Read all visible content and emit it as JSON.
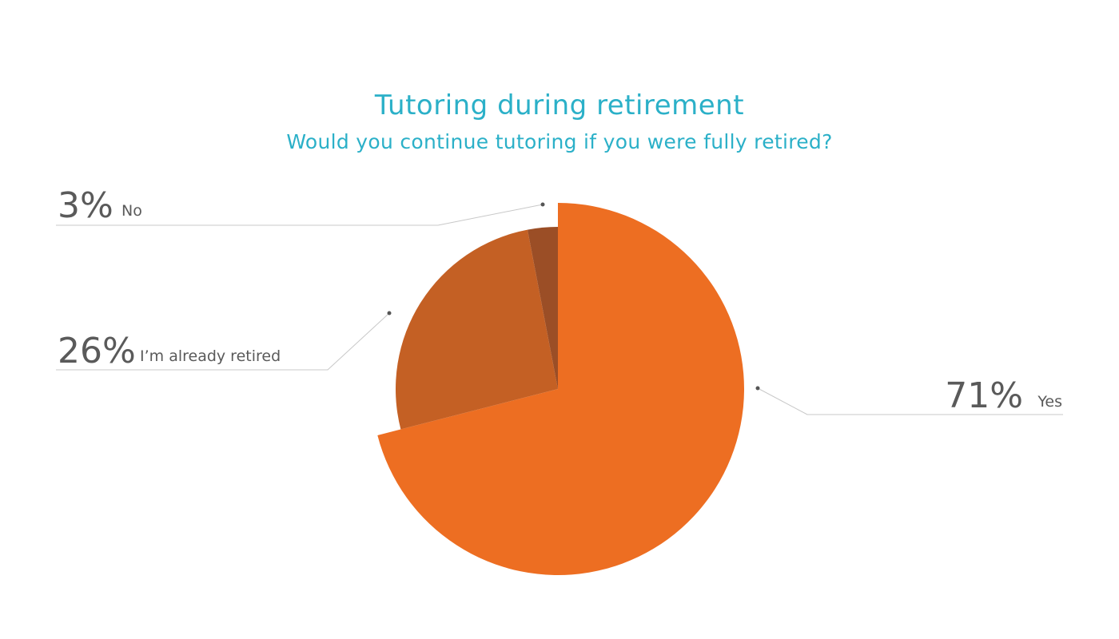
{
  "chart_data": {
    "type": "pie",
    "title": "Tutoring during retirement",
    "subtitle": "Would you continue tutoring if you were fully retired?",
    "slices": [
      {
        "label": "Yes",
        "value": 71,
        "value_label": "71%",
        "color": "#ed6e22",
        "exploded": true
      },
      {
        "label": "I’m already retired",
        "value": 26,
        "value_label": "26%",
        "color": "#c46024",
        "exploded": false
      },
      {
        "label": "No",
        "value": 3,
        "value_label": "3%",
        "color": "#9b4e26",
        "exploded": false
      }
    ],
    "start_angle": "12 o'clock",
    "direction": "clockwise"
  }
}
